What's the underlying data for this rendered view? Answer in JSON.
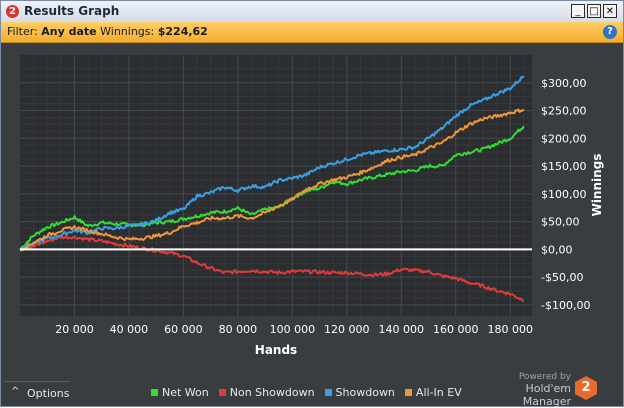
{
  "window": {
    "title": "Results Graph",
    "icon": "hm2-app-icon",
    "minimize": "_",
    "maximize": "□",
    "close": "✕"
  },
  "filter": {
    "prefix": "Filter:",
    "value": "Any date",
    "winnings_label": "Winnings:",
    "winnings_value": "$224,62",
    "help": "?"
  },
  "bottom": {
    "options_label": "Options",
    "options_icon": "^",
    "powered_by": "Powered by",
    "brand": "Hold'em Manager",
    "brand_logo": "2"
  },
  "chart_data": {
    "type": "line",
    "xlabel": "Hands",
    "ylabel": "Winnings",
    "xlim": [
      0,
      188000
    ],
    "ylim": [
      -120,
      350
    ],
    "x_ticks": [
      20000,
      40000,
      60000,
      80000,
      100000,
      120000,
      140000,
      160000,
      180000
    ],
    "x_tick_labels": [
      "20 000",
      "40 000",
      "60 000",
      "80 000",
      "100 000",
      "120 000",
      "140 000",
      "160 000",
      "180 000"
    ],
    "y_ticks": [
      300,
      250,
      200,
      150,
      100,
      50,
      0,
      -50,
      -100
    ],
    "y_tick_labels": [
      "$300,00",
      "$250,00",
      "$200,00",
      "$150,00",
      "$100,00",
      "$50,00",
      "$0,00",
      "-$50,00",
      "-$100,00"
    ],
    "grid": true,
    "legend_position": "bottom",
    "zero_line_color": "#ffffff",
    "series": [
      {
        "name": "Net Won",
        "color": "#33dd33",
        "x": [
          0,
          5000,
          10000,
          15000,
          20000,
          25000,
          30000,
          35000,
          40000,
          45000,
          50000,
          55000,
          60000,
          65000,
          70000,
          75000,
          80000,
          85000,
          90000,
          95000,
          100000,
          105000,
          110000,
          115000,
          120000,
          125000,
          130000,
          135000,
          140000,
          145000,
          150000,
          155000,
          160000,
          165000,
          170000,
          175000,
          180000,
          185000
        ],
        "values": [
          0,
          25,
          40,
          48,
          58,
          42,
          48,
          46,
          44,
          44,
          48,
          50,
          55,
          60,
          66,
          68,
          74,
          62,
          72,
          76,
          92,
          105,
          110,
          122,
          118,
          125,
          130,
          135,
          140,
          142,
          150,
          150,
          170,
          175,
          180,
          190,
          200,
          222
        ]
      },
      {
        "name": "Non Showdown",
        "color": "#e03b3b",
        "x": [
          0,
          5000,
          10000,
          15000,
          20000,
          25000,
          30000,
          35000,
          40000,
          45000,
          50000,
          55000,
          60000,
          65000,
          70000,
          75000,
          80000,
          85000,
          90000,
          95000,
          100000,
          105000,
          110000,
          115000,
          120000,
          125000,
          130000,
          135000,
          140000,
          145000,
          150000,
          155000,
          160000,
          165000,
          170000,
          175000,
          180000,
          185000
        ],
        "values": [
          0,
          5,
          15,
          22,
          22,
          18,
          15,
          10,
          6,
          2,
          -2,
          -6,
          -12,
          -24,
          -34,
          -42,
          -40,
          -38,
          -40,
          -42,
          -40,
          -40,
          -41,
          -42,
          -42,
          -44,
          -46,
          -44,
          -36,
          -38,
          -40,
          -48,
          -52,
          -60,
          -66,
          -74,
          -80,
          -92
        ]
      },
      {
        "name": "Showdown",
        "color": "#3aa0e6",
        "x": [
          0,
          5000,
          10000,
          15000,
          20000,
          25000,
          30000,
          35000,
          40000,
          45000,
          50000,
          55000,
          60000,
          65000,
          70000,
          75000,
          80000,
          85000,
          90000,
          95000,
          100000,
          105000,
          110000,
          115000,
          120000,
          125000,
          130000,
          135000,
          140000,
          145000,
          150000,
          155000,
          160000,
          165000,
          170000,
          175000,
          180000,
          185000
        ],
        "values": [
          0,
          10,
          20,
          26,
          34,
          30,
          38,
          38,
          42,
          45,
          52,
          66,
          72,
          96,
          102,
          112,
          106,
          114,
          112,
          124,
          128,
          134,
          148,
          155,
          162,
          170,
          174,
          178,
          180,
          184,
          200,
          218,
          240,
          258,
          268,
          280,
          290,
          312
        ]
      },
      {
        "name": "All-In EV",
        "color": "#f0963a",
        "x": [
          0,
          5000,
          10000,
          15000,
          20000,
          25000,
          30000,
          35000,
          40000,
          45000,
          50000,
          55000,
          60000,
          65000,
          70000,
          75000,
          80000,
          85000,
          90000,
          95000,
          100000,
          105000,
          110000,
          115000,
          120000,
          125000,
          130000,
          135000,
          140000,
          145000,
          150000,
          155000,
          160000,
          165000,
          170000,
          175000,
          180000,
          185000
        ],
        "values": [
          0,
          12,
          25,
          34,
          40,
          34,
          28,
          22,
          18,
          20,
          24,
          30,
          42,
          48,
          56,
          56,
          60,
          56,
          66,
          78,
          90,
          108,
          118,
          125,
          130,
          138,
          148,
          160,
          166,
          170,
          182,
          192,
          210,
          225,
          235,
          240,
          246,
          252
        ]
      }
    ]
  }
}
